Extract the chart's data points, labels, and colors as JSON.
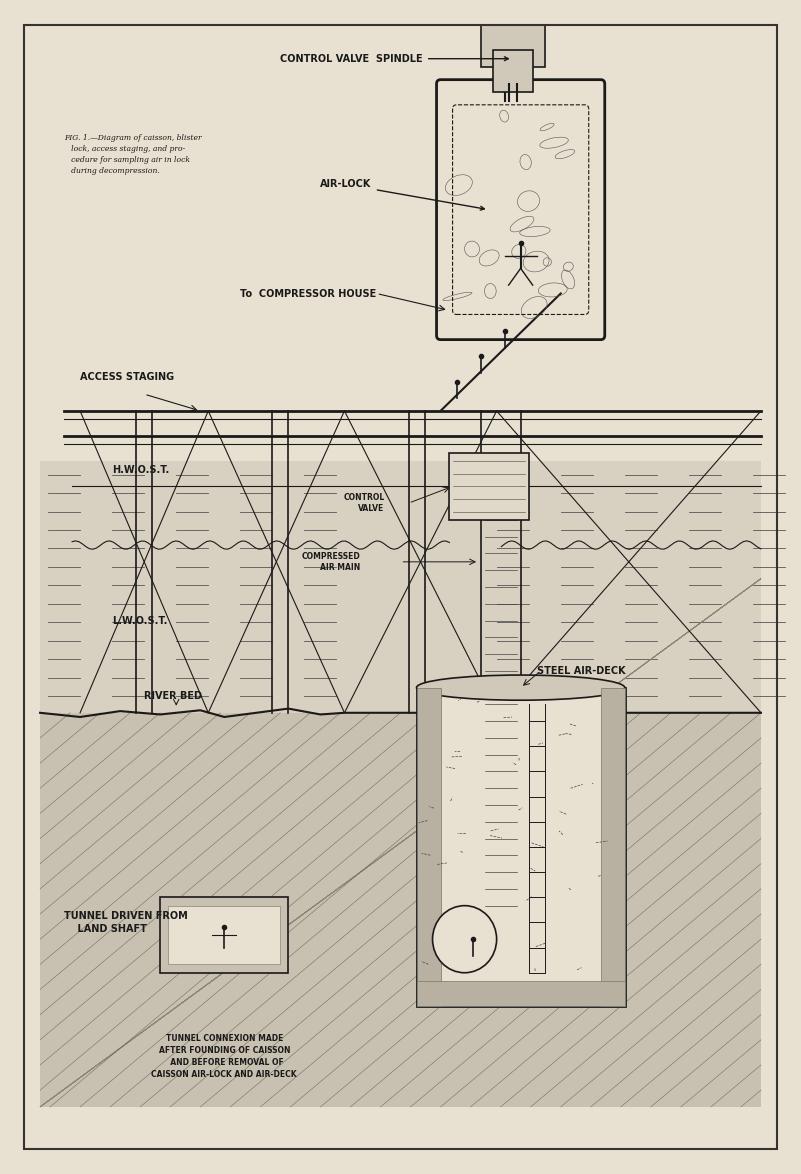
{
  "bg_color": "#e8e0d0",
  "line_color": "#1a1a1a",
  "title_top": "CONTROL VALVE  SPINDLE",
  "label_airlock": "AIR-LOCK",
  "label_fig": "FIG. 1.—Diagram of caisson, blister\n   lock, access staging, and pro-\n   cedure for sampling air in lock\n   during decompression.",
  "label_compressor": "To  COMPRESSOR HOUSE",
  "label_access": "ACCESS STAGING",
  "label_control_valve": "CONTROL\nVALVE",
  "label_compressed": "COMPRESSED\nAIR MAIN",
  "label_hwost": "H.W.O.S.T.",
  "label_lwost": "L.W.O.S.T.",
  "label_riverbed": "RIVER BED",
  "label_steel_airdeck": "STEEL AIR-DECK",
  "label_tunnel_land": "TUNNEL DRIVEN FROM\n    LAND SHAFT",
  "label_tunnel_connexion": "TUNNEL CONNEXION MADE\nAFTER FOUNDING OF CAISSON\n  AND BEFORE REMOVAL OF\nCAISSON AIR-LOCK AND AIR-DECK",
  "fig_width": 8.01,
  "fig_height": 11.74
}
